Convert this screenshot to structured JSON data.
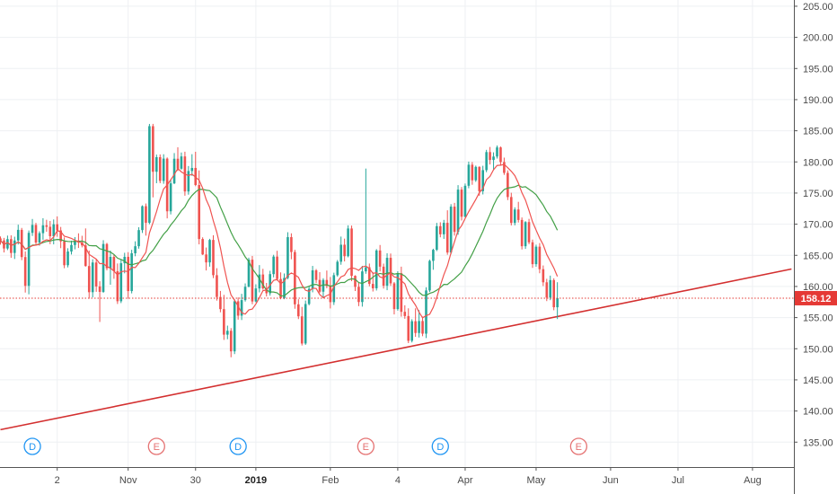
{
  "chart_data": {
    "type": "candlestick",
    "y_axis": {
      "position": "right",
      "range": [
        131,
        206
      ],
      "ticks": [
        "135.00",
        "140.00",
        "145.00",
        "150.00",
        "155.00",
        "160.00",
        "165.00",
        "170.00",
        "175.00",
        "180.00",
        "185.00",
        "190.00",
        "195.00",
        "200.00",
        "205.00"
      ]
    },
    "x_axis": {
      "ticks": [
        {
          "label": "2",
          "index": 16,
          "year": false
        },
        {
          "label": "Nov",
          "index": 36,
          "year": false
        },
        {
          "label": "30",
          "index": 55,
          "year": false
        },
        {
          "label": "2019",
          "index": 72,
          "year": true
        },
        {
          "label": "Feb",
          "index": 93,
          "year": false
        },
        {
          "label": "4",
          "index": 112,
          "year": false
        },
        {
          "label": "Apr",
          "index": 131,
          "year": false
        },
        {
          "label": "May",
          "index": 151,
          "year": false
        },
        {
          "label": "Jun",
          "index": 172,
          "year": false
        },
        {
          "label": "Jul",
          "index": 191,
          "year": false
        },
        {
          "label": "Aug",
          "index": 212,
          "year": false
        }
      ]
    },
    "grid": true,
    "last_price": {
      "value": 158.12,
      "label": "158.12",
      "color": "#e53935"
    },
    "colors": {
      "up": "#26a69a",
      "down": "#ef5350",
      "ma_fast": "#ef5350",
      "ma_slow": "#43a047",
      "trendline": "#d32f2f"
    },
    "trendline": {
      "from": {
        "index": 0,
        "value": 137.0
      },
      "to": {
        "index": 223,
        "value": 162.8
      }
    },
    "events": [
      {
        "label": "D",
        "index": 9,
        "color": "#2196f3"
      },
      {
        "label": "E",
        "index": 44,
        "color": "#e57373"
      },
      {
        "label": "D",
        "index": 67,
        "color": "#2196f3"
      },
      {
        "label": "E",
        "index": 103,
        "color": "#e57373"
      },
      {
        "label": "D",
        "index": 124,
        "color": "#2196f3"
      },
      {
        "label": "E",
        "index": 163,
        "color": "#e57373"
      }
    ],
    "candles": [
      [
        167.71,
        168.04,
        166.72,
        167.39
      ],
      [
        167.39,
        167.8,
        165.46,
        166.1
      ],
      [
        166.1,
        168.17,
        165.84,
        167.6
      ],
      [
        167.6,
        168.21,
        164.61,
        165.38
      ],
      [
        165.38,
        167.99,
        164.41,
        167.38
      ],
      [
        167.38,
        169.92,
        166.74,
        169.09
      ],
      [
        169.09,
        169.4,
        164.22,
        164.72
      ],
      [
        164.72,
        165.63,
        159.02,
        160.1
      ],
      [
        160.1,
        168.99,
        158.74,
        168.61
      ],
      [
        168.61,
        170.84,
        168.11,
        169.88
      ],
      [
        169.88,
        170.22,
        166.67,
        167.05
      ],
      [
        167.05,
        168.86,
        166.55,
        168.56
      ],
      [
        168.56,
        170.96,
        167.5,
        169.82
      ],
      [
        169.82,
        170.71,
        168.79,
        169.58
      ],
      [
        169.58,
        170.52,
        166.79,
        168.07
      ],
      [
        168.07,
        170.76,
        166.76,
        169.98
      ],
      [
        169.98,
        171.25,
        167.98,
        169.0
      ],
      [
        169.0,
        169.56,
        166.15,
        167.24
      ],
      [
        167.24,
        167.88,
        162.93,
        163.41
      ],
      [
        163.41,
        166.14,
        163.06,
        165.61
      ],
      [
        165.61,
        167.35,
        165.12,
        166.66
      ],
      [
        166.66,
        167.93,
        165.96,
        167.37
      ],
      [
        167.37,
        168.53,
        166.18,
        167.05
      ],
      [
        167.05,
        168.14,
        166.28,
        166.6
      ],
      [
        166.6,
        169.32,
        163.18,
        163.28
      ],
      [
        163.28,
        165.76,
        158.03,
        159.08
      ],
      [
        159.08,
        164.37,
        158.24,
        163.85
      ],
      [
        163.85,
        164.37,
        159.14,
        160.0
      ],
      [
        160.0,
        160.84,
        154.3,
        159.13
      ],
      [
        159.13,
        167.43,
        158.97,
        166.82
      ],
      [
        166.82,
        167.0,
        162.59,
        162.92
      ],
      [
        162.92,
        165.76,
        160.28,
        164.75
      ],
      [
        164.75,
        165.12,
        161.23,
        162.45
      ],
      [
        162.45,
        163.69,
        157.19,
        157.63
      ],
      [
        157.63,
        164.27,
        157.33,
        163.73
      ],
      [
        163.73,
        165.41,
        162.11,
        164.76
      ],
      [
        164.76,
        165.51,
        158.03,
        159.26
      ],
      [
        159.26,
        165.89,
        158.89,
        165.33
      ],
      [
        165.33,
        167.25,
        164.85,
        166.46
      ],
      [
        166.46,
        169.51,
        166.07,
        169.05
      ],
      [
        169.05,
        173.03,
        168.59,
        172.89
      ],
      [
        172.89,
        173.32,
        168.16,
        170.22
      ],
      [
        170.22,
        186.1,
        169.99,
        185.74
      ],
      [
        185.74,
        186.11,
        174.31,
        178.42
      ],
      [
        178.42,
        181.17,
        176.58,
        180.76
      ],
      [
        180.76,
        181.2,
        176.58,
        176.95
      ],
      [
        176.95,
        181.23,
        176.49,
        180.53
      ],
      [
        180.53,
        180.72,
        170.93,
        172.07
      ],
      [
        172.07,
        177.19,
        171.57,
        176.56
      ],
      [
        176.56,
        181.42,
        176.43,
        180.51
      ],
      [
        180.51,
        182.34,
        178.54,
        178.91
      ],
      [
        178.91,
        181.51,
        178.75,
        180.88
      ],
      [
        180.88,
        181.64,
        174.57,
        175.25
      ],
      [
        175.25,
        179.34,
        174.74,
        178.54
      ],
      [
        178.54,
        181.24,
        177.76,
        179.03
      ],
      [
        179.03,
        181.63,
        176.1,
        176.29
      ],
      [
        176.29,
        178.63,
        166.76,
        167.62
      ],
      [
        167.62,
        167.89,
        165.05,
        165.14
      ],
      [
        165.14,
        166.25,
        162.57,
        163.86
      ],
      [
        163.86,
        167.65,
        163.18,
        167.47
      ],
      [
        167.47,
        168.23,
        161.34,
        161.81
      ],
      [
        161.81,
        162.93,
        157.73,
        158.31
      ],
      [
        158.31,
        159.28,
        155.85,
        156.36
      ],
      [
        156.36,
        158.65,
        151.42,
        152.26
      ],
      [
        152.26,
        153.71,
        151.53,
        152.88
      ],
      [
        152.88,
        153.31,
        148.63,
        149.58
      ],
      [
        149.58,
        157.92,
        149.14,
        157.62
      ],
      [
        157.62,
        158.24,
        154.67,
        155.31
      ],
      [
        155.31,
        158.82,
        154.61,
        157.81
      ],
      [
        157.81,
        160.49,
        157.57,
        159.95
      ],
      [
        159.95,
        164.62,
        159.86,
        164.3
      ],
      [
        164.3,
        164.9,
        157.15,
        157.59
      ],
      [
        157.59,
        160.35,
        157.45,
        159.68
      ],
      [
        159.68,
        163.43,
        159.05,
        161.92
      ],
      [
        161.92,
        162.83,
        159.47,
        159.69
      ],
      [
        159.69,
        160.57,
        158.39,
        158.91
      ],
      [
        158.91,
        162.52,
        158.53,
        161.98
      ],
      [
        161.98,
        165.08,
        161.46,
        164.8
      ],
      [
        164.8,
        165.73,
        160.93,
        161.2
      ],
      [
        161.2,
        162.26,
        157.94,
        158.13
      ],
      [
        158.13,
        162.08,
        157.95,
        161.37
      ],
      [
        161.37,
        168.71,
        161.15,
        167.92
      ],
      [
        167.92,
        168.53,
        164.37,
        165.53
      ],
      [
        165.53,
        165.89,
        156.42,
        157.13
      ],
      [
        157.13,
        157.95,
        154.76,
        155.2
      ],
      [
        155.2,
        156.71,
        150.52,
        150.84
      ],
      [
        150.84,
        157.74,
        150.62,
        157.18
      ],
      [
        157.18,
        160.11,
        156.97,
        159.63
      ],
      [
        159.63,
        163.3,
        159.06,
        162.59
      ],
      [
        162.59,
        162.8,
        160.55,
        161.05
      ],
      [
        161.05,
        162.29,
        158.95,
        159.16
      ],
      [
        159.16,
        161.32,
        158.11,
        161.04
      ],
      [
        161.04,
        162.56,
        159.71,
        160.07
      ],
      [
        160.07,
        161.52,
        156.47,
        157.48
      ],
      [
        157.48,
        162.21,
        157.03,
        161.81
      ],
      [
        161.81,
        164.25,
        161.58,
        163.97
      ],
      [
        163.97,
        168.01,
        163.49,
        166.7
      ],
      [
        166.7,
        167.68,
        164.02,
        164.86
      ],
      [
        164.86,
        169.82,
        164.68,
        169.31
      ],
      [
        169.31,
        169.78,
        160.85,
        161.71
      ],
      [
        161.71,
        161.8,
        159.27,
        159.94
      ],
      [
        159.94,
        160.65,
        156.84,
        157.5
      ],
      [
        157.5,
        163.31,
        156.76,
        162.42
      ],
      [
        162.42,
        178.93,
        162.04,
        163.08
      ],
      [
        163.08,
        163.68,
        160.03,
        160.41
      ],
      [
        160.41,
        162.26,
        159.19,
        159.7
      ],
      [
        159.7,
        166.0,
        159.35,
        165.78
      ],
      [
        165.78,
        166.66,
        162.42,
        163.18
      ],
      [
        163.18,
        163.67,
        159.66,
        160.12
      ],
      [
        160.12,
        165.33,
        159.4,
        164.6
      ],
      [
        164.6,
        165.29,
        160.1,
        160.5
      ],
      [
        160.5,
        160.72,
        155.51,
        156.37
      ],
      [
        156.37,
        162.44,
        156.12,
        162.13
      ],
      [
        162.13,
        163.18,
        155.15,
        155.93
      ],
      [
        155.93,
        156.98,
        154.81,
        155.25
      ],
      [
        155.25,
        156.49,
        150.9,
        151.27
      ],
      [
        151.27,
        154.74,
        151.01,
        154.42
      ],
      [
        154.42,
        156.49,
        151.91,
        152.53
      ],
      [
        152.53,
        156.2,
        151.8,
        154.45
      ],
      [
        154.45,
        155.16,
        152.01,
        152.42
      ],
      [
        152.42,
        159.86,
        151.71,
        159.36
      ],
      [
        159.36,
        164.3,
        159.11,
        164.11
      ],
      [
        164.11,
        166.06,
        162.68,
        165.89
      ],
      [
        165.89,
        170.21,
        165.68,
        169.68
      ],
      [
        169.68,
        170.31,
        167.89,
        168.38
      ],
      [
        168.38,
        170.69,
        167.64,
        170.22
      ],
      [
        170.22,
        172.23,
        165.09,
        165.45
      ],
      [
        165.45,
        173.21,
        165.17,
        172.82
      ],
      [
        172.82,
        173.42,
        168.17,
        168.77
      ],
      [
        168.77,
        176.27,
        168.3,
        175.55
      ],
      [
        175.55,
        175.96,
        170.6,
        171.2
      ],
      [
        171.2,
        176.53,
        171.1,
        176.17
      ],
      [
        176.17,
        180.05,
        175.77,
        179.55
      ],
      [
        179.55,
        179.98,
        176.33,
        177.05
      ],
      [
        177.05,
        179.41,
        176.79,
        179.2
      ],
      [
        179.2,
        179.3,
        174.56,
        175.3
      ],
      [
        175.3,
        179.38,
        174.78,
        178.68
      ],
      [
        178.68,
        181.94,
        178.35,
        181.58
      ],
      [
        181.58,
        182.4,
        179.59,
        180.31
      ],
      [
        180.31,
        181.54,
        178.65,
        180.86
      ],
      [
        180.86,
        182.63,
        180.54,
        182.33
      ],
      [
        182.33,
        182.47,
        179.38,
        179.98
      ],
      [
        179.98,
        180.69,
        177.92,
        178.24
      ],
      [
        178.24,
        178.64,
        173.87,
        174.36
      ],
      [
        174.36,
        175.05,
        169.8,
        170.2
      ],
      [
        170.2,
        172.71,
        169.81,
        172.36
      ],
      [
        172.36,
        173.59,
        170.27,
        170.68
      ],
      [
        170.68,
        171.08,
        165.94,
        166.46
      ],
      [
        166.46,
        170.49,
        166.03,
        170.34
      ],
      [
        170.34,
        170.86,
        166.78,
        167.09
      ],
      [
        167.09,
        167.52,
        162.99,
        163.58
      ],
      [
        163.58,
        166.71,
        163.17,
        166.39
      ],
      [
        166.39,
        166.97,
        162.12,
        162.77
      ],
      [
        162.77,
        163.37,
        160.07,
        160.67
      ],
      [
        160.67,
        161.23,
        157.65,
        158.22
      ],
      [
        158.22,
        161.74,
        157.8,
        161.02
      ],
      [
        161.02,
        161.31,
        156.18,
        156.66
      ],
      [
        156.66,
        160.68,
        154.77,
        158.12
      ]
    ]
  }
}
